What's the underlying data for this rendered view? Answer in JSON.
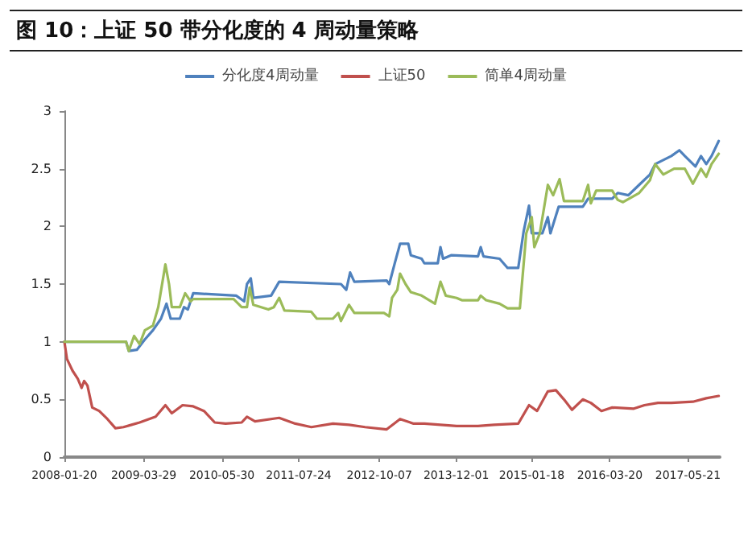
{
  "chart_data": {
    "type": "line",
    "title": "图 10：上证 50 带分化度的 4 周动量策略",
    "series": [
      {
        "name": "分化度4周动量",
        "color": "#4f81bd",
        "x": [
          "2008-01-20",
          "2008-12-22",
          "2009-01-06",
          "2009-02-19",
          "2009-04-04",
          "2009-05-18",
          "2009-07-01",
          "2009-07-31",
          "2009-08-23",
          "2009-10-12",
          "2009-11-04",
          "2009-11-25",
          "2009-12-24",
          "2010-08-16",
          "2010-09-29",
          "2010-10-14",
          "2010-11-04",
          "2010-11-18",
          "2011-02-23",
          "2011-04-08",
          "2012-03-11",
          "2012-04-09",
          "2012-04-30",
          "2012-05-23",
          "2012-11-16",
          "2012-11-30",
          "2012-12-30",
          "2013-01-28",
          "2013-03-14",
          "2013-03-28",
          "2013-05-26",
          "2013-06-10",
          "2013-08-22",
          "2013-09-06",
          "2013-09-20",
          "2013-11-03",
          "2014-03-30",
          "2014-04-14",
          "2014-04-29",
          "2014-07-26",
          "2014-09-08",
          "2014-11-05",
          "2014-12-05",
          "2015-01-03",
          "2015-01-18",
          "2015-03-17",
          "2015-04-16",
          "2015-04-30",
          "2015-06-14",
          "2015-10-24",
          "2015-11-22",
          "2016-04-02",
          "2016-05-02",
          "2016-06-29",
          "2016-08-27",
          "2016-10-25",
          "2016-11-23",
          "2017-02-19",
          "2017-04-04",
          "2017-05-04",
          "2017-07-01",
          "2017-07-31",
          "2017-08-29",
          "2017-09-27",
          "2017-11-05"
        ],
        "values": [
          1.0,
          1.0,
          0.92,
          0.93,
          1.02,
          1.1,
          1.2,
          1.33,
          1.2,
          1.2,
          1.3,
          1.28,
          1.42,
          1.4,
          1.35,
          1.5,
          1.55,
          1.38,
          1.4,
          1.52,
          1.5,
          1.45,
          1.6,
          1.52,
          1.53,
          1.5,
          1.68,
          1.85,
          1.85,
          1.75,
          1.72,
          1.68,
          1.68,
          1.82,
          1.72,
          1.75,
          1.74,
          1.82,
          1.74,
          1.72,
          1.64,
          1.64,
          1.96,
          2.18,
          1.94,
          1.94,
          2.08,
          1.94,
          2.17,
          2.17,
          2.24,
          2.24,
          2.29,
          2.27,
          2.36,
          2.45,
          2.54,
          2.61,
          2.66,
          2.61,
          2.52,
          2.61,
          2.54,
          2.61,
          2.74
        ]
      },
      {
        "name": "上证50",
        "color": "#c0504d",
        "x": [
          "2008-01-20",
          "2008-02-03",
          "2008-03-04",
          "2008-04-02",
          "2008-04-23",
          "2008-05-07",
          "2008-05-25",
          "2008-06-20",
          "2008-07-28",
          "2008-09-11",
          "2008-10-25",
          "2008-12-08",
          "2009-01-21",
          "2009-03-06",
          "2009-06-02",
          "2009-07-25",
          "2009-08-29",
          "2009-10-27",
          "2009-12-24",
          "2010-02-21",
          "2010-04-21",
          "2010-06-19",
          "2010-09-15",
          "2010-10-14",
          "2010-11-27",
          "2011-04-08",
          "2011-07-05",
          "2011-10-01",
          "2012-01-27",
          "2012-04-24",
          "2012-07-21",
          "2012-11-16",
          "2013-01-28",
          "2013-04-12",
          "2013-06-10",
          "2013-12-03",
          "2014-03-30",
          "2014-06-26",
          "2014-11-05",
          "2015-01-03",
          "2015-02-16",
          "2015-04-16",
          "2015-05-30",
          "2015-07-13",
          "2015-08-26",
          "2015-10-24",
          "2015-12-07",
          "2016-02-03",
          "2016-04-02",
          "2016-07-29",
          "2016-09-25",
          "2016-12-08",
          "2017-02-19",
          "2017-06-17",
          "2017-08-29",
          "2017-11-05"
        ],
        "values": [
          1.0,
          0.85,
          0.75,
          0.68,
          0.6,
          0.66,
          0.62,
          0.43,
          0.4,
          0.33,
          0.25,
          0.26,
          0.28,
          0.3,
          0.35,
          0.45,
          0.38,
          0.45,
          0.44,
          0.4,
          0.3,
          0.29,
          0.3,
          0.35,
          0.31,
          0.34,
          0.29,
          0.26,
          0.29,
          0.28,
          0.26,
          0.24,
          0.33,
          0.29,
          0.29,
          0.27,
          0.27,
          0.28,
          0.29,
          0.45,
          0.4,
          0.57,
          0.58,
          0.5,
          0.41,
          0.5,
          0.47,
          0.4,
          0.43,
          0.42,
          0.45,
          0.47,
          0.47,
          0.48,
          0.51,
          0.53
        ]
      },
      {
        "name": "简单4周动量",
        "color": "#9bbb59",
        "x": [
          "2008-01-20",
          "2008-12-22",
          "2009-01-06",
          "2009-02-04",
          "2009-03-06",
          "2009-04-04",
          "2009-05-18",
          "2009-06-16",
          "2009-07-25",
          "2009-08-14",
          "2009-08-29",
          "2009-10-12",
          "2009-11-10",
          "2009-12-10",
          "2009-12-24",
          "2010-08-02",
          "2010-09-15",
          "2010-10-14",
          "2010-10-29",
          "2010-11-18",
          "2011-02-08",
          "2011-03-10",
          "2011-04-08",
          "2011-05-07",
          "2011-10-01",
          "2011-10-31",
          "2012-01-27",
          "2012-02-25",
          "2012-03-11",
          "2012-04-24",
          "2012-05-23",
          "2012-11-01",
          "2012-11-30",
          "2012-12-15",
          "2013-01-13",
          "2013-01-28",
          "2013-02-27",
          "2013-03-28",
          "2013-05-26",
          "2013-08-07",
          "2013-09-06",
          "2013-10-05",
          "2013-12-03",
          "2014-01-01",
          "2014-03-30",
          "2014-04-14",
          "2014-05-13",
          "2014-07-26",
          "2014-09-08",
          "2014-11-14",
          "2014-12-19",
          "2015-01-18",
          "2015-02-01",
          "2015-03-03",
          "2015-04-16",
          "2015-05-15",
          "2015-06-19",
          "2015-07-13",
          "2015-10-24",
          "2015-11-22",
          "2015-12-07",
          "2016-01-05",
          "2016-04-02",
          "2016-05-02",
          "2016-05-31",
          "2016-08-27",
          "2016-10-25",
          "2016-11-23",
          "2017-01-06",
          "2017-03-06",
          "2017-05-04",
          "2017-06-17",
          "2017-07-31",
          "2017-08-29",
          "2017-09-27",
          "2017-11-05"
        ],
        "values": [
          1.0,
          1.0,
          0.92,
          1.05,
          0.98,
          1.1,
          1.14,
          1.3,
          1.67,
          1.5,
          1.3,
          1.3,
          1.42,
          1.35,
          1.37,
          1.37,
          1.3,
          1.3,
          1.47,
          1.32,
          1.28,
          1.3,
          1.38,
          1.27,
          1.26,
          1.2,
          1.2,
          1.25,
          1.18,
          1.32,
          1.25,
          1.25,
          1.22,
          1.38,
          1.45,
          1.59,
          1.5,
          1.43,
          1.4,
          1.33,
          1.52,
          1.4,
          1.38,
          1.36,
          1.36,
          1.4,
          1.36,
          1.33,
          1.29,
          1.29,
          1.94,
          2.08,
          1.82,
          1.94,
          2.36,
          2.27,
          2.41,
          2.22,
          2.22,
          2.36,
          2.2,
          2.31,
          2.31,
          2.23,
          2.21,
          2.29,
          2.4,
          2.54,
          2.45,
          2.5,
          2.5,
          2.37,
          2.5,
          2.43,
          2.54,
          2.63
        ]
      }
    ],
    "xlim": [
      "2008-01-20",
      "2017-11-11"
    ],
    "xticks": [
      "2008-01-20",
      "2009-03-29",
      "2010-05-30",
      "2011-07-24",
      "2012-10-07",
      "2013-12-01",
      "2015-01-18",
      "2016-03-20",
      "2017-05-21"
    ],
    "ylim": [
      0,
      3
    ],
    "yticks": [
      0,
      0.5,
      1,
      1.5,
      2,
      2.5,
      3
    ],
    "legend": "top",
    "grid": false,
    "marker": "none",
    "line_style": "solid"
  }
}
